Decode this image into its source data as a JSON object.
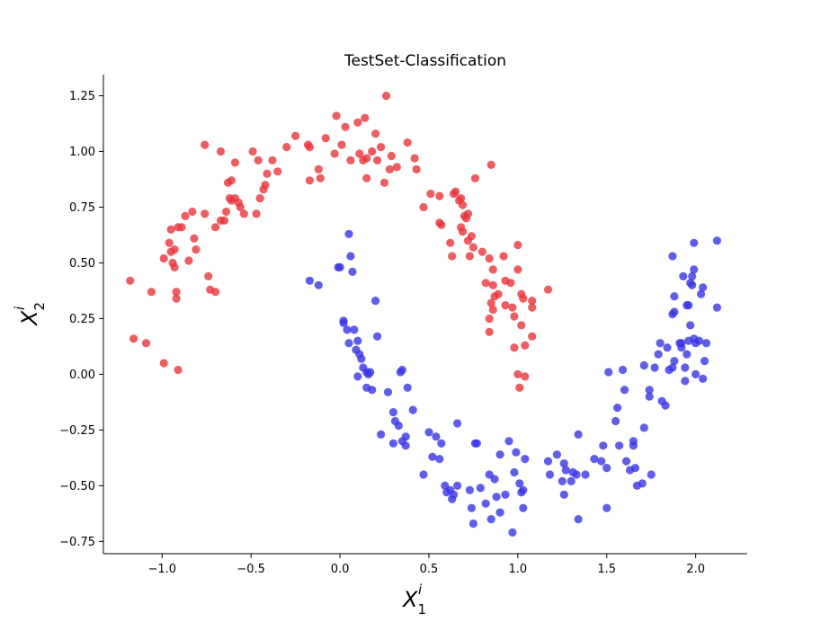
{
  "chart_data": {
    "type": "scatter",
    "title": "TestSet-Classification",
    "xlabel": {
      "base": "X",
      "sub": "1",
      "sup": "i"
    },
    "ylabel": {
      "base": "X",
      "sub": "2",
      "sup": "i"
    },
    "xlim": [
      -1.33,
      2.29
    ],
    "ylim": [
      -0.805,
      1.345
    ],
    "xticks": [
      -1.0,
      -0.5,
      0.0,
      0.5,
      1.0,
      1.5,
      2.0
    ],
    "xtick_labels": [
      "−1.0",
      "−0.5",
      "0.0",
      "0.5",
      "1.0",
      "1.5",
      "2.0"
    ],
    "yticks": [
      -0.75,
      -0.5,
      -0.25,
      0.0,
      0.25,
      0.5,
      0.75,
      1.0,
      1.25
    ],
    "ytick_labels": [
      "−0.75",
      "−0.50",
      "−0.25",
      "0.00",
      "0.25",
      "0.50",
      "0.75",
      "1.00",
      "1.25"
    ],
    "grid": false,
    "series": [
      {
        "color": "#e8343a",
        "points": [
          [
            -1.18,
            0.42
          ],
          [
            -1.16,
            0.16
          ],
          [
            -1.06,
            0.37
          ],
          [
            -1.09,
            0.14
          ],
          [
            -0.99,
            0.05
          ],
          [
            -0.91,
            0.02
          ],
          [
            -0.99,
            0.52
          ],
          [
            -0.96,
            0.59
          ],
          [
            -0.95,
            0.55
          ],
          [
            -0.93,
            0.56
          ],
          [
            -0.94,
            0.5
          ],
          [
            -0.93,
            0.48
          ],
          [
            -0.92,
            0.37
          ],
          [
            -0.92,
            0.34
          ],
          [
            -0.95,
            0.65
          ],
          [
            -0.91,
            0.66
          ],
          [
            -0.89,
            0.66
          ],
          [
            -0.87,
            0.71
          ],
          [
            -0.85,
            0.51
          ],
          [
            -0.82,
            0.61
          ],
          [
            -0.81,
            0.56
          ],
          [
            -0.83,
            0.73
          ],
          [
            -0.76,
            0.72
          ],
          [
            -0.74,
            0.44
          ],
          [
            -0.73,
            0.38
          ],
          [
            -0.7,
            0.37
          ],
          [
            -0.7,
            0.66
          ],
          [
            -0.67,
            0.69
          ],
          [
            -0.65,
            0.69
          ],
          [
            -0.64,
            0.73
          ],
          [
            -0.62,
            0.79
          ],
          [
            -0.61,
            0.78
          ],
          [
            -0.59,
            0.79
          ],
          [
            -0.57,
            0.77
          ],
          [
            -0.56,
            0.75
          ],
          [
            -0.54,
            0.72
          ],
          [
            -0.47,
            0.72
          ],
          [
            -0.45,
            0.79
          ],
          [
            -0.43,
            0.83
          ],
          [
            -0.42,
            0.85
          ],
          [
            -0.41,
            0.9
          ],
          [
            -0.63,
            0.86
          ],
          [
            -0.61,
            0.87
          ],
          [
            -0.59,
            0.95
          ],
          [
            -0.76,
            1.03
          ],
          [
            -0.67,
            1.0
          ],
          [
            -0.49,
            1.0
          ],
          [
            -0.46,
            0.96
          ],
          [
            -0.38,
            0.96
          ],
          [
            -0.35,
            0.91
          ],
          [
            -0.3,
            1.02
          ],
          [
            -0.25,
            1.07
          ],
          [
            -0.18,
            1.03
          ],
          [
            -0.17,
            1.02
          ],
          [
            -0.17,
            0.87
          ],
          [
            -0.12,
            0.92
          ],
          [
            -0.11,
            0.88
          ],
          [
            -0.08,
            1.06
          ],
          [
            -0.03,
            0.99
          ],
          [
            -0.02,
            1.16
          ],
          [
            0.01,
            1.03
          ],
          [
            0.03,
            1.11
          ],
          [
            0.06,
            0.96
          ],
          [
            0.1,
            1.13
          ],
          [
            0.11,
            0.99
          ],
          [
            0.13,
            0.96
          ],
          [
            0.14,
            1.15
          ],
          [
            0.15,
            0.97
          ],
          [
            0.15,
            0.88
          ],
          [
            0.18,
            1.0
          ],
          [
            0.2,
            1.08
          ],
          [
            0.21,
            0.96
          ],
          [
            0.23,
            1.02
          ],
          [
            0.25,
            0.86
          ],
          [
            0.26,
            1.25
          ],
          [
            0.28,
            0.92
          ],
          [
            0.29,
            0.98
          ],
          [
            0.32,
            0.93
          ],
          [
            0.38,
            1.04
          ],
          [
            0.42,
            0.97
          ],
          [
            0.43,
            0.92
          ],
          [
            0.47,
            0.75
          ],
          [
            0.51,
            0.81
          ],
          [
            0.56,
            0.8
          ],
          [
            0.56,
            0.68
          ],
          [
            0.57,
            0.67
          ],
          [
            0.62,
            0.59
          ],
          [
            0.63,
            0.53
          ],
          [
            0.64,
            0.81
          ],
          [
            0.65,
            0.82
          ],
          [
            0.67,
            0.78
          ],
          [
            0.68,
            0.79
          ],
          [
            0.69,
            0.76
          ],
          [
            0.7,
            0.71
          ],
          [
            0.68,
            0.66
          ],
          [
            0.69,
            0.64
          ],
          [
            0.71,
            0.7
          ],
          [
            0.72,
            0.72
          ],
          [
            0.72,
            0.6
          ],
          [
            0.74,
            0.62
          ],
          [
            0.75,
            0.57
          ],
          [
            0.73,
            0.53
          ],
          [
            0.76,
            0.88
          ],
          [
            0.8,
            0.55
          ],
          [
            0.84,
            0.52
          ],
          [
            0.85,
            0.94
          ],
          [
            0.82,
            0.41
          ],
          [
            0.86,
            0.47
          ],
          [
            0.86,
            0.4
          ],
          [
            0.87,
            0.35
          ],
          [
            0.85,
            0.32
          ],
          [
            0.84,
            0.25
          ],
          [
            0.86,
            0.29
          ],
          [
            0.84,
            0.19
          ],
          [
            0.89,
            0.36
          ],
          [
            0.93,
            0.42
          ],
          [
            0.93,
            0.31
          ],
          [
            0.92,
            0.53
          ],
          [
            0.96,
            0.41
          ],
          [
            0.97,
            0.3
          ],
          [
            0.98,
            0.26
          ],
          [
            0.98,
            0.12
          ],
          [
            1.0,
            0.47
          ],
          [
            1.02,
            0.22
          ],
          [
            1.0,
            0.58
          ],
          [
            1.04,
            0.13
          ],
          [
            1.02,
            0.36
          ],
          [
            1.03,
            0.34
          ],
          [
            1.0,
            0.0
          ],
          [
            1.01,
            -0.06
          ],
          [
            1.04,
            -0.01
          ],
          [
            1.08,
            0.3
          ],
          [
            1.08,
            0.33
          ],
          [
            1.08,
            0.17
          ],
          [
            1.17,
            0.38
          ]
        ]
      },
      {
        "color": "#3a35e6",
        "points": [
          [
            -0.17,
            0.42
          ],
          [
            -0.12,
            0.4
          ],
          [
            -0.01,
            0.48
          ],
          [
            0.0,
            0.48
          ],
          [
            0.05,
            0.63
          ],
          [
            0.06,
            0.53
          ],
          [
            0.07,
            0.46
          ],
          [
            0.02,
            0.23
          ],
          [
            0.02,
            0.24
          ],
          [
            0.04,
            0.2
          ],
          [
            0.05,
            0.14
          ],
          [
            0.08,
            0.2
          ],
          [
            0.09,
            0.11
          ],
          [
            0.1,
            0.15
          ],
          [
            0.11,
            0.09
          ],
          [
            0.12,
            0.07
          ],
          [
            0.1,
            -0.01
          ],
          [
            0.13,
            0.03
          ],
          [
            0.15,
            0.01
          ],
          [
            0.16,
            0.0
          ],
          [
            0.17,
            0.01
          ],
          [
            0.2,
            0.33
          ],
          [
            0.21,
            0.17
          ],
          [
            0.15,
            -0.06
          ],
          [
            0.18,
            -0.07
          ],
          [
            0.27,
            -0.08
          ],
          [
            0.23,
            -0.27
          ],
          [
            0.3,
            -0.17
          ],
          [
            0.31,
            -0.21
          ],
          [
            0.33,
            -0.23
          ],
          [
            0.34,
            0.01
          ],
          [
            0.35,
            0.02
          ],
          [
            0.38,
            -0.06
          ],
          [
            0.41,
            -0.16
          ],
          [
            0.35,
            -0.3
          ],
          [
            0.37,
            -0.28
          ],
          [
            0.37,
            -0.32
          ],
          [
            0.3,
            -0.31
          ],
          [
            0.47,
            -0.45
          ],
          [
            0.5,
            -0.26
          ],
          [
            0.52,
            -0.37
          ],
          [
            0.54,
            -0.28
          ],
          [
            0.56,
            -0.38
          ],
          [
            0.57,
            -0.31
          ],
          [
            0.59,
            -0.5
          ],
          [
            0.6,
            -0.53
          ],
          [
            0.62,
            -0.52
          ],
          [
            0.63,
            -0.56
          ],
          [
            0.64,
            -0.54
          ],
          [
            0.66,
            -0.5
          ],
          [
            0.66,
            -0.22
          ],
          [
            0.73,
            -0.52
          ],
          [
            0.74,
            -0.6
          ],
          [
            0.75,
            -0.67
          ],
          [
            0.76,
            -0.31
          ],
          [
            0.77,
            -0.31
          ],
          [
            0.79,
            -0.51
          ],
          [
            0.82,
            -0.58
          ],
          [
            0.84,
            -0.45
          ],
          [
            0.85,
            -0.65
          ],
          [
            0.87,
            -0.47
          ],
          [
            0.88,
            -0.55
          ],
          [
            0.9,
            -0.36
          ],
          [
            0.9,
            -0.62
          ],
          [
            0.93,
            -0.54
          ],
          [
            0.95,
            -0.3
          ],
          [
            0.97,
            -0.71
          ],
          [
            0.98,
            -0.44
          ],
          [
            0.99,
            -0.35
          ],
          [
            1.01,
            -0.49
          ],
          [
            1.02,
            -0.53
          ],
          [
            1.03,
            -0.6
          ],
          [
            1.04,
            -0.38
          ],
          [
            1.03,
            -0.52
          ],
          [
            1.17,
            -0.39
          ],
          [
            1.18,
            -0.45
          ],
          [
            1.22,
            -0.36
          ],
          [
            1.25,
            -0.48
          ],
          [
            1.26,
            -0.4
          ],
          [
            1.27,
            -0.43
          ],
          [
            1.26,
            -0.54
          ],
          [
            1.3,
            -0.48
          ],
          [
            1.31,
            -0.44
          ],
          [
            1.33,
            -0.45
          ],
          [
            1.34,
            -0.65
          ],
          [
            1.34,
            -0.27
          ],
          [
            1.38,
            -0.45
          ],
          [
            1.43,
            -0.38
          ],
          [
            1.47,
            -0.39
          ],
          [
            1.48,
            -0.32
          ],
          [
            1.5,
            -0.42
          ],
          [
            1.5,
            -0.6
          ],
          [
            1.51,
            0.01
          ],
          [
            1.55,
            -0.21
          ],
          [
            1.56,
            -0.15
          ],
          [
            1.57,
            -0.32
          ],
          [
            1.59,
            0.02
          ],
          [
            1.6,
            -0.07
          ],
          [
            1.61,
            -0.39
          ],
          [
            1.63,
            -0.43
          ],
          [
            1.65,
            -0.3
          ],
          [
            1.65,
            -0.32
          ],
          [
            1.66,
            -0.42
          ],
          [
            1.67,
            -0.5
          ],
          [
            1.7,
            -0.49
          ],
          [
            1.71,
            -0.24
          ],
          [
            1.71,
            0.04
          ],
          [
            1.74,
            -0.1
          ],
          [
            1.74,
            -0.07
          ],
          [
            1.75,
            -0.45
          ],
          [
            1.77,
            0.03
          ],
          [
            1.79,
            0.09
          ],
          [
            1.8,
            0.14
          ],
          [
            1.81,
            -0.12
          ],
          [
            1.83,
            -0.14
          ],
          [
            1.84,
            0.12
          ],
          [
            1.85,
            0.02
          ],
          [
            1.87,
            0.03
          ],
          [
            1.88,
            0.06
          ],
          [
            1.87,
            0.27
          ],
          [
            1.88,
            0.28
          ],
          [
            1.88,
            0.35
          ],
          [
            1.87,
            0.53
          ],
          [
            1.92,
            0.14
          ],
          [
            1.92,
            0.12
          ],
          [
            1.93,
            0.44
          ],
          [
            1.94,
            0.03
          ],
          [
            1.95,
            0.09
          ],
          [
            1.95,
            0.31
          ],
          [
            1.96,
            0.31
          ],
          [
            1.96,
            0.15
          ],
          [
            1.97,
            0.22
          ],
          [
            1.97,
            0.41
          ],
          [
            1.98,
            0.44
          ],
          [
            1.99,
            0.47
          ],
          [
            1.98,
            0.4
          ],
          [
            1.99,
            0.16
          ],
          [
            2.0,
            0.14
          ],
          [
            1.99,
            0.59
          ],
          [
            2.02,
            0.15
          ],
          [
            2.03,
            0.36
          ],
          [
            2.04,
            0.39
          ],
          [
            2.05,
            0.06
          ],
          [
            2.06,
            0.14
          ],
          [
            2.04,
            -0.02
          ],
          [
            2.12,
            0.6
          ],
          [
            2.12,
            0.3
          ],
          [
            2.0,
            0.0
          ],
          [
            1.94,
            -0.03
          ],
          [
            1.91,
            0.14
          ]
        ]
      }
    ]
  }
}
